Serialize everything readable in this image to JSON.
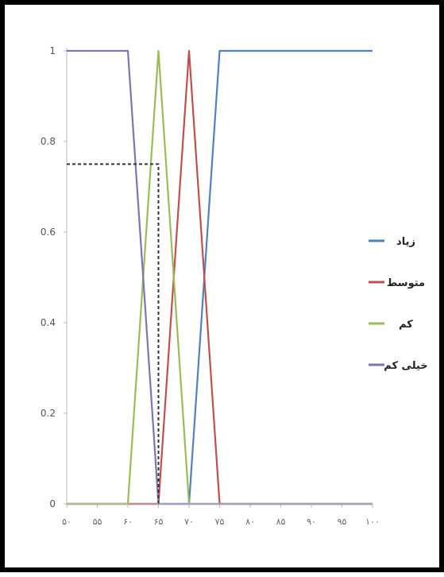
{
  "chart_data": {
    "type": "line",
    "title": "",
    "xlabel": "",
    "ylabel": "",
    "x_ticks": [
      50,
      55,
      60,
      65,
      70,
      75,
      80,
      85,
      90,
      95,
      100
    ],
    "x_tick_labels": [
      "۵۰",
      "۵۵",
      "۶۰",
      "۶۵",
      "۷۰",
      "۷۵",
      "۸۰",
      "۸۵",
      "۹۰",
      "۹۵",
      "۱۰۰"
    ],
    "y_ticks": [
      0,
      0.2,
      0.4,
      0.6,
      0.8,
      1
    ],
    "y_tick_labels": [
      "0",
      "0.2",
      "0.4",
      "0.6",
      "0.8",
      "1"
    ],
    "xlim": [
      50,
      100
    ],
    "ylim": [
      0,
      1
    ],
    "grid": false,
    "legend_position": "right",
    "series": [
      {
        "name": "خیلی کم",
        "color": "#7b76b0",
        "points": [
          [
            50,
            1
          ],
          [
            60,
            1
          ],
          [
            65,
            0
          ],
          [
            100,
            0
          ]
        ]
      },
      {
        "name": "کم",
        "color": "#9bbb59",
        "points": [
          [
            50,
            0
          ],
          [
            60,
            0
          ],
          [
            65,
            1
          ],
          [
            70,
            0
          ],
          [
            100,
            0
          ]
        ]
      },
      {
        "name": "متوسط",
        "color": "#c0504d",
        "points": [
          [
            50,
            0
          ],
          [
            65,
            0
          ],
          [
            70,
            1
          ],
          [
            75,
            0
          ],
          [
            100,
            0
          ]
        ]
      },
      {
        "name": "زیاد",
        "color": "#4f81bd",
        "points": [
          [
            50,
            0
          ],
          [
            70,
            0
          ],
          [
            75,
            1
          ],
          [
            100,
            1
          ]
        ]
      }
    ],
    "legend_order": [
      3,
      2,
      1,
      0
    ],
    "annotation": {
      "style": "dashed",
      "color": "#333333",
      "points": [
        [
          50,
          0.75
        ],
        [
          65,
          0.75
        ],
        [
          65,
          0
        ]
      ]
    }
  }
}
